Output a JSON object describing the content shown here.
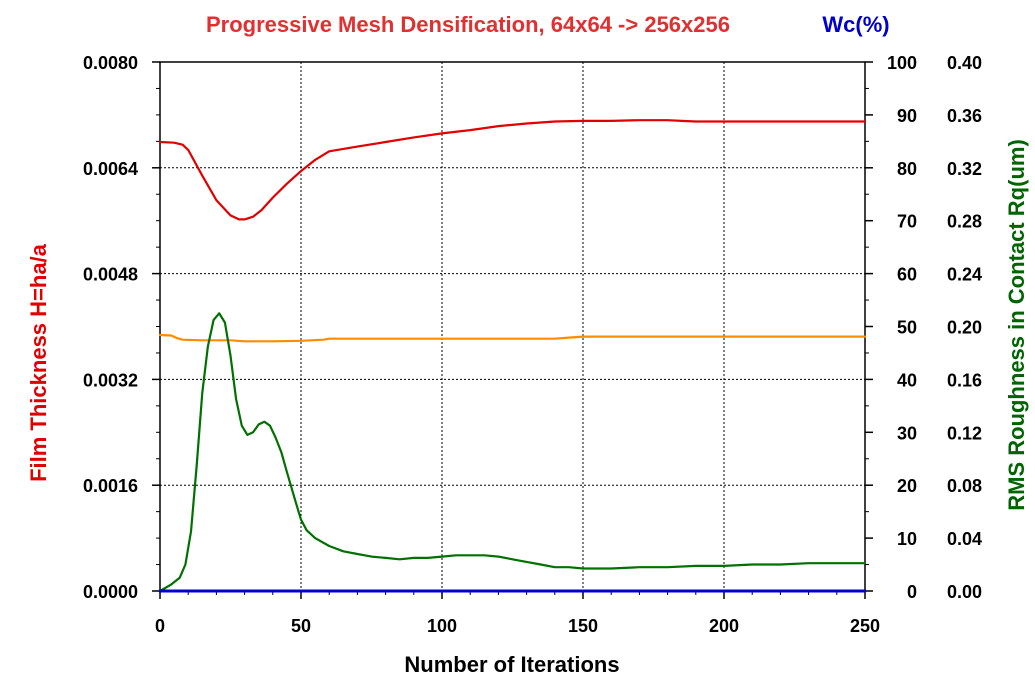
{
  "chart_data": {
    "type": "line",
    "title": "Progressive Mesh Densification, 64x64 -> 256x256",
    "right_title": "Wc(%)",
    "xlabel": "Number of Iterations",
    "ylabel_left": "Film Thickness H=ha/a",
    "ylabel_right": "RMS Roughness in Contact Rq(um)",
    "xlim": [
      0,
      250
    ],
    "ylim_left": [
      0,
      0.008
    ],
    "ylim_wc": [
      0,
      100
    ],
    "ylim_rq": [
      0,
      0.4
    ],
    "x_ticks": [
      "0",
      "50",
      "100",
      "150",
      "200",
      "250"
    ],
    "y_ticks_left": [
      "0.0000",
      "0.0016",
      "0.0032",
      "0.0048",
      "0.0064",
      "0.0080"
    ],
    "y_ticks_wc": [
      "0",
      "10",
      "20",
      "30",
      "40",
      "50",
      "60",
      "70",
      "80",
      "90",
      "100"
    ],
    "y_ticks_rq": [
      "0.00",
      "0.04",
      "0.08",
      "0.12",
      "0.16",
      "0.20",
      "0.24",
      "0.28",
      "0.32",
      "0.36",
      "0.40"
    ],
    "grid": true,
    "colors": {
      "title": "#e03030",
      "right_title": "#0000cc",
      "ylabel_left": "#e00000",
      "ylabel_right": "#006400",
      "film": "#e00000",
      "orange": "#ff8c00",
      "rq": "#007000",
      "wc": "#0000cc"
    },
    "series": [
      {
        "key": "film",
        "axis": "left",
        "x": [
          0,
          5,
          8,
          10,
          15,
          20,
          25,
          28,
          30,
          33,
          36,
          40,
          45,
          50,
          55,
          60,
          70,
          80,
          90,
          100,
          110,
          120,
          130,
          140,
          150,
          160,
          170,
          180,
          185,
          190,
          200,
          210,
          220,
          230,
          240,
          250
        ],
        "values": [
          0.00679,
          0.00678,
          0.00675,
          0.00667,
          0.00628,
          0.00591,
          0.00568,
          0.00562,
          0.00562,
          0.00566,
          0.00576,
          0.00595,
          0.00616,
          0.00635,
          0.00652,
          0.00665,
          0.00672,
          0.00679,
          0.00686,
          0.00692,
          0.00697,
          0.00703,
          0.00707,
          0.0071,
          0.00711,
          0.00711,
          0.00712,
          0.00712,
          0.00711,
          0.0071,
          0.0071,
          0.0071,
          0.0071,
          0.0071,
          0.0071,
          0.0071
        ]
      },
      {
        "key": "orange",
        "axis": "wc",
        "x": [
          0,
          4,
          6,
          8,
          15,
          20,
          25,
          30,
          40,
          50,
          58,
          60,
          80,
          100,
          120,
          140,
          145,
          150,
          200,
          250
        ],
        "values": [
          48.4,
          48.3,
          47.8,
          47.5,
          47.4,
          47.4,
          47.4,
          47.2,
          47.2,
          47.3,
          47.5,
          47.7,
          47.7,
          47.7,
          47.7,
          47.7,
          47.9,
          48.1,
          48.1,
          48.1
        ]
      },
      {
        "key": "rq",
        "axis": "rq",
        "x": [
          0,
          4,
          7,
          9,
          11,
          13,
          15,
          17,
          19,
          21,
          23,
          25,
          27,
          29,
          31,
          33,
          35,
          37,
          39,
          41,
          43,
          45,
          48,
          50,
          52,
          55,
          60,
          65,
          70,
          75,
          80,
          85,
          90,
          95,
          100,
          105,
          110,
          115,
          120,
          125,
          130,
          135,
          140,
          145,
          150,
          155,
          160,
          170,
          180,
          190,
          200,
          210,
          220,
          230,
          240,
          250
        ],
        "values": [
          0.0,
          0.005,
          0.01,
          0.02,
          0.045,
          0.095,
          0.15,
          0.185,
          0.205,
          0.21,
          0.203,
          0.178,
          0.145,
          0.125,
          0.118,
          0.12,
          0.126,
          0.128,
          0.125,
          0.116,
          0.105,
          0.09,
          0.068,
          0.054,
          0.046,
          0.04,
          0.034,
          0.03,
          0.028,
          0.026,
          0.025,
          0.024,
          0.025,
          0.025,
          0.026,
          0.027,
          0.027,
          0.027,
          0.026,
          0.024,
          0.022,
          0.02,
          0.018,
          0.018,
          0.017,
          0.017,
          0.017,
          0.018,
          0.018,
          0.019,
          0.019,
          0.02,
          0.02,
          0.021,
          0.021,
          0.021
        ]
      },
      {
        "key": "wc",
        "axis": "wc",
        "x": [
          0,
          250
        ],
        "values": [
          0,
          0
        ]
      }
    ]
  }
}
